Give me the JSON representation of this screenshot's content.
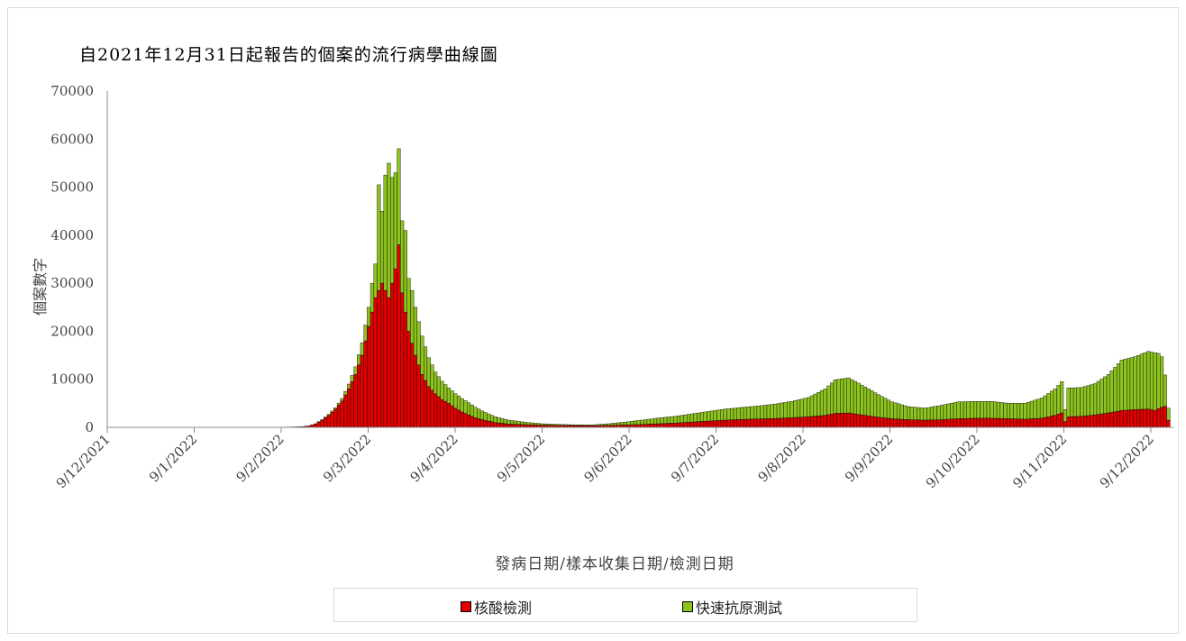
{
  "chart_data": {
    "type": "bar",
    "stacked": true,
    "title": "自2021年12月31日起報告的個案的流行病學曲線圖",
    "ylabel": "個案數字",
    "xlabel": "發病日期/樣本收集日期/檢測日期",
    "ylim": [
      0,
      70000
    ],
    "yticks": [
      0,
      10000,
      20000,
      30000,
      40000,
      50000,
      60000,
      70000
    ],
    "grid": false,
    "legend_position": "bottom",
    "x_tick_labels": [
      "9/12/2021",
      "9/1/2022",
      "9/2/2022",
      "9/3/2022",
      "9/4/2022",
      "9/5/2022",
      "9/6/2022",
      "9/7/2022",
      "9/8/2022",
      "9/9/2022",
      "9/10/2022",
      "9/11/2022",
      "9/12/2022"
    ],
    "series": [
      {
        "name": "核酸檢測",
        "color": "#e00000",
        "keypoints": [
          [
            0,
            0
          ],
          [
            20,
            10
          ],
          [
            50,
            30
          ],
          [
            55,
            80
          ],
          [
            58,
            150
          ],
          [
            60,
            300
          ],
          [
            62,
            700
          ],
          [
            64,
            1500
          ],
          [
            66,
            2500
          ],
          [
            68,
            3800
          ],
          [
            70,
            5500
          ],
          [
            72,
            8000
          ],
          [
            74,
            11000
          ],
          [
            76,
            15000
          ],
          [
            78,
            21000
          ],
          [
            80,
            27000
          ],
          [
            82,
            30000
          ],
          [
            84,
            27000
          ],
          [
            86,
            33000
          ],
          [
            87,
            38000
          ],
          [
            88,
            28000
          ],
          [
            90,
            20000
          ],
          [
            92,
            15000
          ],
          [
            94,
            11000
          ],
          [
            96,
            8500
          ],
          [
            98,
            7000
          ],
          [
            100,
            5800
          ],
          [
            102,
            5000
          ],
          [
            104,
            4000
          ],
          [
            106,
            3200
          ],
          [
            108,
            2600
          ],
          [
            110,
            2000
          ],
          [
            112,
            1600
          ],
          [
            114,
            1300
          ],
          [
            116,
            1000
          ],
          [
            118,
            850
          ],
          [
            120,
            700
          ],
          [
            125,
            550
          ],
          [
            130,
            450
          ],
          [
            135,
            400
          ],
          [
            140,
            380
          ],
          [
            145,
            350
          ],
          [
            150,
            400
          ],
          [
            155,
            500
          ],
          [
            160,
            600
          ],
          [
            165,
            750
          ],
          [
            170,
            900
          ],
          [
            175,
            1100
          ],
          [
            180,
            1300
          ],
          [
            185,
            1500
          ],
          [
            190,
            1650
          ],
          [
            195,
            1750
          ],
          [
            200,
            1850
          ],
          [
            205,
            2000
          ],
          [
            210,
            2200
          ],
          [
            215,
            2500
          ],
          [
            218,
            2900
          ],
          [
            222,
            3000
          ],
          [
            225,
            2700
          ],
          [
            230,
            2200
          ],
          [
            235,
            1800
          ],
          [
            240,
            1600
          ],
          [
            245,
            1500
          ],
          [
            250,
            1600
          ],
          [
            255,
            1800
          ],
          [
            260,
            1900
          ],
          [
            265,
            1900
          ],
          [
            270,
            1800
          ],
          [
            275,
            1700
          ],
          [
            280,
            1900
          ],
          [
            284,
            2500
          ],
          [
            286,
            3000
          ],
          [
            287,
            1200
          ],
          [
            288,
            2200
          ],
          [
            292,
            2300
          ],
          [
            296,
            2600
          ],
          [
            300,
            3000
          ],
          [
            304,
            3500
          ],
          [
            308,
            3700
          ],
          [
            312,
            3800
          ],
          [
            314,
            3500
          ],
          [
            315,
            3900
          ],
          [
            316,
            4200
          ],
          [
            317,
            4400
          ],
          [
            318,
            1500
          ]
        ]
      },
      {
        "name": "快速抗原測試",
        "color": "#8dc21f",
        "keypoints": [
          [
            0,
            0
          ],
          [
            60,
            0
          ],
          [
            64,
            100
          ],
          [
            68,
            300
          ],
          [
            70,
            500
          ],
          [
            72,
            1000
          ],
          [
            74,
            1600
          ],
          [
            76,
            2600
          ],
          [
            78,
            4000
          ],
          [
            79,
            6000
          ],
          [
            80,
            7000
          ],
          [
            81,
            22000
          ],
          [
            82,
            15000
          ],
          [
            83,
            24000
          ],
          [
            84,
            28000
          ],
          [
            85,
            22000
          ],
          [
            86,
            20000
          ],
          [
            87,
            20000
          ],
          [
            88,
            15000
          ],
          [
            89,
            17000
          ],
          [
            90,
            11000
          ],
          [
            91,
            11000
          ],
          [
            92,
            10000
          ],
          [
            93,
            9000
          ],
          [
            94,
            8000
          ],
          [
            95,
            7000
          ],
          [
            96,
            6000
          ],
          [
            98,
            4500
          ],
          [
            100,
            3800
          ],
          [
            102,
            3200
          ],
          [
            104,
            3000
          ],
          [
            106,
            2800
          ],
          [
            108,
            2500
          ],
          [
            110,
            2200
          ],
          [
            112,
            1800
          ],
          [
            114,
            1500
          ],
          [
            116,
            1200
          ],
          [
            118,
            1000
          ],
          [
            120,
            800
          ],
          [
            125,
            500
          ],
          [
            130,
            300
          ],
          [
            135,
            200
          ],
          [
            140,
            150
          ],
          [
            145,
            150
          ],
          [
            150,
            350
          ],
          [
            155,
            600
          ],
          [
            160,
            900
          ],
          [
            165,
            1200
          ],
          [
            170,
            1400
          ],
          [
            175,
            1700
          ],
          [
            180,
            2000
          ],
          [
            185,
            2300
          ],
          [
            190,
            2500
          ],
          [
            195,
            2700
          ],
          [
            200,
            3000
          ],
          [
            205,
            3400
          ],
          [
            210,
            4000
          ],
          [
            215,
            5500
          ],
          [
            218,
            7000
          ],
          [
            222,
            7300
          ],
          [
            225,
            6500
          ],
          [
            230,
            5000
          ],
          [
            235,
            3500
          ],
          [
            240,
            2700
          ],
          [
            245,
            2500
          ],
          [
            250,
            3000
          ],
          [
            255,
            3500
          ],
          [
            260,
            3500
          ],
          [
            265,
            3500
          ],
          [
            270,
            3200
          ],
          [
            275,
            3300
          ],
          [
            280,
            4200
          ],
          [
            284,
            5500
          ],
          [
            286,
            6500
          ],
          [
            287,
            2500
          ],
          [
            288,
            6000
          ],
          [
            292,
            6000
          ],
          [
            296,
            6500
          ],
          [
            300,
            8000
          ],
          [
            304,
            10500
          ],
          [
            308,
            11000
          ],
          [
            312,
            12000
          ],
          [
            314,
            12000
          ],
          [
            315,
            11500
          ],
          [
            316,
            10500
          ],
          [
            317,
            6500
          ],
          [
            318,
            2500
          ]
        ]
      }
    ]
  }
}
